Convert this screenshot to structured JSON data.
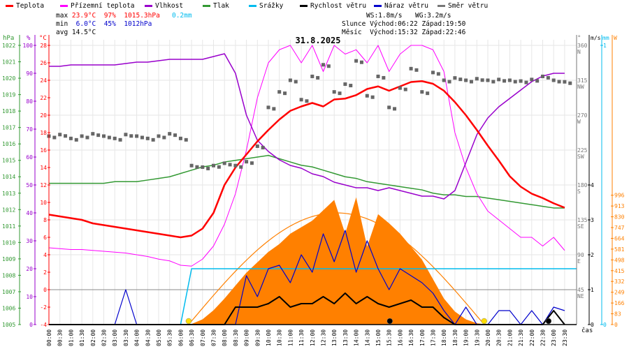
{
  "legend": [
    {
      "label": "Teplota",
      "color": "#ff0000"
    },
    {
      "label": "Přízemní teplota",
      "color": "#ff00ff"
    },
    {
      "label": "Vlhkost",
      "color": "#9900cc"
    },
    {
      "label": "Tlak",
      "color": "#339933"
    },
    {
      "label": "Srážky",
      "color": "#00bbee"
    },
    {
      "label": "Rychlost větru",
      "color": "#000000"
    },
    {
      "label": "Náraz větru",
      "color": "#0000cc"
    },
    {
      "label": "Směr větru",
      "color": "#777777"
    }
  ],
  "stats": {
    "max_label": "max",
    "max_temp": "23.9°C",
    "max_hum": "97%",
    "max_press": "1015.3hPa",
    "max_rain": "0.2mm",
    "min_label": "min",
    "min_temp": "6.0°C",
    "min_hum": "45%",
    "min_press": "1012hPa",
    "avg_label": "avg",
    "avg_temp": "14.5°C"
  },
  "info": {
    "ws": "WS:1.8m/s",
    "wg": "WG:3.2m/s",
    "sun_label": "Slunce",
    "sun_rise": "Východ:06:22",
    "sun_set": "Západ:19:50",
    "moon_label": "Měsíc",
    "moon_rise": "Východ:15:32",
    "moon_set": "Západ:22:46"
  },
  "chart_data": {
    "type": "line",
    "title": "31.8.2025",
    "xlabel": "čas",
    "x_ticks": [
      "00:00",
      "00:30",
      "01:00",
      "01:30",
      "02:00",
      "02:30",
      "03:00",
      "03:30",
      "04:00",
      "04:30",
      "05:00",
      "05:30",
      "06:00",
      "06:30",
      "07:00",
      "07:30",
      "08:00",
      "08:30",
      "09:00",
      "09:30",
      "10:00",
      "10:30",
      "11:00",
      "11:30",
      "12:00",
      "12:30",
      "13:00",
      "13:30",
      "14:00",
      "14:30",
      "15:00",
      "15:30",
      "16:00",
      "16:30",
      "17:00",
      "17:30",
      "18:00",
      "18:30",
      "19:00",
      "19:30",
      "20:00",
      "20:30",
      "21:00",
      "21:30",
      "22:00",
      "22:30",
      "23:00",
      "23:30"
    ],
    "axes": {
      "hpa": {
        "unit": "hPa",
        "range": [
          1005,
          1022
        ],
        "ticks": [
          1022,
          1021,
          1020,
          1019,
          1018,
          1017,
          1016,
          1015,
          1014,
          1013,
          1012,
          1011,
          1010,
          1009,
          1008,
          1007,
          1006,
          1005
        ]
      },
      "pct": {
        "unit": "%",
        "range": [
          0,
          100
        ],
        "ticks": [
          100,
          90,
          80,
          70,
          60,
          50,
          40,
          30,
          20,
          10,
          0
        ]
      },
      "temp": {
        "unit": "°C",
        "range": [
          -4,
          28
        ],
        "ticks": [
          28,
          26,
          24,
          22,
          20,
          18,
          16,
          14,
          12,
          10,
          8,
          6,
          4,
          2,
          0,
          -2,
          -4
        ]
      },
      "dir": {
        "unit": "°",
        "range": [
          0,
          360
        ],
        "ticks": [
          {
            "v": 360,
            "c": "N"
          },
          {
            "v": 315,
            "c": "NW"
          },
          {
            "v": 270,
            "c": "W"
          },
          {
            "v": 225,
            "c": "SW"
          },
          {
            "v": 180,
            "c": "S"
          },
          {
            "v": 135,
            "c": "SE"
          },
          {
            "v": 90,
            "c": "E"
          },
          {
            "v": 45,
            "c": "NE"
          }
        ]
      },
      "wind": {
        "unit": "m/s",
        "range": [
          0,
          8
        ],
        "ticks": [
          4,
          3,
          2,
          1,
          0
        ]
      },
      "rain": {
        "unit": "mm",
        "range": [
          0,
          1
        ],
        "ticks": [
          1,
          0
        ]
      },
      "solar": {
        "unit": "W",
        "range": [
          0,
          2150
        ],
        "ticks": [
          996,
          913,
          830,
          747,
          664,
          581,
          498,
          415,
          332,
          249,
          166,
          83,
          0
        ]
      }
    },
    "series": {
      "temperature": [
        8.6,
        8.4,
        8.2,
        8.0,
        7.6,
        7.4,
        7.2,
        7.0,
        6.8,
        6.6,
        6.4,
        6.2,
        6.0,
        6.2,
        7.0,
        8.8,
        12.0,
        14.0,
        15.5,
        17.0,
        18.3,
        19.5,
        20.5,
        21.0,
        21.4,
        21.0,
        21.8,
        21.9,
        22.3,
        23.0,
        23.3,
        22.8,
        23.3,
        23.8,
        23.9,
        23.6,
        22.8,
        21.5,
        20.0,
        18.3,
        16.5,
        14.8,
        13.0,
        11.8,
        11.0,
        10.5,
        9.9,
        9.4
      ],
      "ground_temperature": [
        4.8,
        4.7,
        4.6,
        4.6,
        4.5,
        4.4,
        4.3,
        4.2,
        4.0,
        3.8,
        3.5,
        3.3,
        2.8,
        2.7,
        3.5,
        5.0,
        7.5,
        11,
        16,
        22,
        26,
        27.5,
        28,
        26,
        28,
        25,
        28,
        27,
        27.5,
        26,
        28,
        25,
        27,
        28,
        28,
        27.5,
        25,
        18,
        14,
        11,
        9,
        8,
        7,
        6,
        6,
        5,
        6,
        4.5
      ],
      "humidity": [
        92.5,
        92.5,
        93,
        93,
        93,
        93,
        93,
        93.5,
        94,
        94,
        94.5,
        95,
        95,
        95,
        95,
        96,
        97,
        90,
        75,
        66,
        62,
        59,
        57,
        56,
        54,
        53,
        51,
        50,
        49,
        49,
        48,
        49,
        48,
        47,
        46,
        46,
        45,
        48,
        58,
        68,
        74,
        78,
        81,
        84,
        87,
        89,
        90,
        90
      ],
      "pressure": [
        1013.6,
        1013.6,
        1013.6,
        1013.6,
        1013.6,
        1013.6,
        1013.7,
        1013.7,
        1013.7,
        1013.8,
        1013.9,
        1014.0,
        1014.2,
        1014.4,
        1014.6,
        1014.7,
        1014.9,
        1015.0,
        1015.1,
        1015.2,
        1015.3,
        1015.1,
        1014.9,
        1014.7,
        1014.6,
        1014.4,
        1014.2,
        1014.0,
        1013.9,
        1013.7,
        1013.6,
        1013.5,
        1013.4,
        1013.3,
        1013.2,
        1013.0,
        1012.9,
        1012.9,
        1012.8,
        1012.8,
        1012.7,
        1012.6,
        1012.5,
        1012.4,
        1012.3,
        1012.2,
        1012.1,
        1012.1
      ],
      "rain_cumulative": [
        0,
        0,
        0,
        0,
        0,
        0,
        0,
        0,
        0,
        0,
        0,
        0,
        0,
        0.2,
        0.2,
        0.2,
        0.2,
        0.2,
        0.2,
        0.2,
        0.2,
        0.2,
        0.2,
        0.2,
        0.2,
        0.2,
        0.2,
        0.2,
        0.2,
        0.2,
        0.2,
        0.2,
        0.2,
        0.2,
        0.2,
        0.2,
        0.2,
        0.2,
        0.2,
        0.2,
        0.2,
        0.2,
        0.2,
        0.2,
        0.2,
        0.2,
        0.2,
        0.2
      ],
      "wind_speed": [
        0,
        0,
        0,
        0,
        0,
        0,
        0,
        0,
        0,
        0,
        0,
        0,
        0,
        0,
        0,
        0,
        0,
        0.5,
        0.5,
        0.5,
        0.6,
        0.8,
        0.5,
        0.6,
        0.6,
        0.8,
        0.6,
        0.9,
        0.6,
        0.8,
        0.6,
        0.5,
        0.6,
        0.7,
        0.5,
        0.5,
        0.2,
        0,
        0,
        0,
        0,
        0,
        0,
        0,
        0,
        0,
        0.4,
        0
      ],
      "wind_gust": [
        0,
        0,
        0,
        0,
        0,
        0,
        0,
        1,
        0,
        0,
        0,
        0,
        0,
        0,
        0,
        0,
        0,
        0,
        1.4,
        0.8,
        1.6,
        1.7,
        1.2,
        2.0,
        1.5,
        2.6,
        1.8,
        2.7,
        1.5,
        2.4,
        1.6,
        1.0,
        1.6,
        1.4,
        1.2,
        0.9,
        0.4,
        0,
        0.5,
        0,
        0,
        0.4,
        0.4,
        0,
        0.4,
        0,
        0.5,
        0.4
      ],
      "wind_direction": [
        243,
        245,
        240,
        243,
        246,
        243,
        240,
        245,
        243,
        240,
        243,
        246,
        240,
        205,
        203,
        205,
        208,
        205,
        210,
        230,
        280,
        300,
        315,
        290,
        320,
        335,
        300,
        310,
        340,
        295,
        320,
        280,
        305,
        330,
        300,
        325,
        315,
        318,
        315,
        317,
        315,
        316,
        315,
        314,
        316,
        320,
        315,
        313
      ],
      "solar_radiation": [
        0,
        0,
        0,
        0,
        0,
        0,
        0,
        0,
        0,
        0,
        0,
        0,
        0,
        5,
        40,
        110,
        200,
        300,
        400,
        480,
        560,
        620,
        700,
        750,
        800,
        880,
        960,
        700,
        980,
        600,
        850,
        780,
        700,
        600,
        500,
        350,
        200,
        100,
        40,
        10,
        0,
        0,
        0,
        0,
        0,
        0,
        0,
        0
      ],
      "clear_sky_peak": 860
    },
    "markers": {
      "sunrise": "06:22",
      "sunset": "19:50",
      "moonrise": "15:32",
      "moonset": "22:46"
    },
    "grid": true
  }
}
